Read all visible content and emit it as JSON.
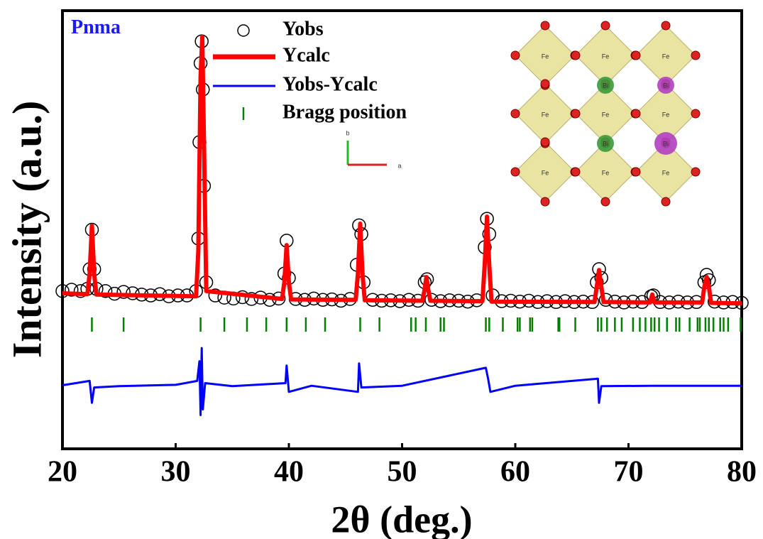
{
  "chart_data": {
    "type": "line",
    "annotation": "Pnma",
    "xlabel": "2θ (deg.)",
    "ylabel": "Intensity (a.u.)",
    "xlim": [
      20,
      80
    ],
    "xticks": [
      20,
      30,
      40,
      50,
      60,
      70,
      80
    ],
    "ylim": [
      0,
      100
    ],
    "series": [
      {
        "name": "Yobs",
        "color": "#000000",
        "marker": "circle",
        "x": [
          20,
          20.8,
          21.6,
          22.2,
          22.4,
          22.6,
          22.8,
          23.0,
          23.8,
          24.6,
          25.4,
          26.2,
          27,
          27.8,
          28.6,
          29.4,
          30.2,
          31,
          31.8,
          32.0,
          32.1,
          32.2,
          32.3,
          32.4,
          32.5,
          32.7,
          33.5,
          34.3,
          35.1,
          35.9,
          36.7,
          37.5,
          38.3,
          39.1,
          39.6,
          39.8,
          40.0,
          40.6,
          41.4,
          42.2,
          43,
          43.8,
          44.6,
          45.4,
          46.0,
          46.2,
          46.4,
          46.6,
          47.4,
          48.2,
          49,
          49.8,
          50.6,
          51.4,
          52.0,
          52.2,
          52.6,
          53.4,
          54.2,
          55,
          55.8,
          56.6,
          57.3,
          57.5,
          57.7,
          58.0,
          58.8,
          59.6,
          60.4,
          61.2,
          62,
          62.8,
          63.6,
          64.4,
          65.2,
          66,
          66.8,
          67.2,
          67.4,
          67.6,
          68.0,
          68.8,
          69.6,
          70.4,
          71.2,
          72.0,
          72.2,
          72.8,
          73.6,
          74.4,
          75.2,
          76,
          76.7,
          76.9,
          77.1,
          77.6,
          78.4,
          79.2,
          80
        ],
        "values": [
          36,
          36.3,
          36,
          36.5,
          41,
          50,
          41,
          36.5,
          36,
          35.4,
          35.8,
          35.5,
          35.2,
          35,
          35.3,
          34.8,
          35,
          35,
          36,
          48,
          70,
          88,
          93,
          82,
          60,
          38,
          35,
          34.5,
          34.3,
          34.6,
          34.2,
          34.5,
          34,
          34.3,
          40,
          47.5,
          39,
          34.2,
          34,
          34.3,
          34,
          34.1,
          33.8,
          34.2,
          42,
          51,
          49,
          38,
          34,
          33.8,
          33.9,
          33.7,
          34,
          33.8,
          38,
          38.7,
          34,
          33.7,
          33.9,
          33.8,
          33.6,
          33.9,
          46,
          52.5,
          49,
          35,
          33.7,
          33.8,
          33.6,
          33.8,
          33.5,
          33.7,
          33.5,
          33.7,
          33.5,
          33.6,
          33.5,
          38,
          41,
          39,
          34,
          33.6,
          33.4,
          33.6,
          33.5,
          34.8,
          35,
          33.5,
          33.4,
          33.6,
          33.4,
          33.5,
          38,
          39.7,
          38.5,
          33.6,
          33.4,
          33.5,
          33.3
        ]
      },
      {
        "name": "Ycalc",
        "color": "#ff0000",
        "x": [
          20,
          22.2,
          22.4,
          22.6,
          22.8,
          23.0,
          31.8,
          32.0,
          32.2,
          32.35,
          32.5,
          32.7,
          39.4,
          39.6,
          39.8,
          40.0,
          40.2,
          45.9,
          46.1,
          46.3,
          46.5,
          46.7,
          51.8,
          52.0,
          52.15,
          52.3,
          52.5,
          57.1,
          57.3,
          57.5,
          57.7,
          57.9,
          67.0,
          67.2,
          67.4,
          67.6,
          67.8,
          71.9,
          72.1,
          72.3,
          76.5,
          76.7,
          76.9,
          77.1,
          77.3,
          80
        ],
        "values": [
          35.5,
          35.3,
          40,
          50.9,
          40,
          35.2,
          34.8,
          45,
          85,
          94,
          70,
          36,
          34.2,
          38,
          46.5,
          38,
          34.1,
          34,
          40,
          51.4,
          40,
          33.9,
          33.8,
          36.5,
          39.2,
          36.5,
          33.8,
          33.7,
          42,
          53,
          42,
          33.6,
          33.5,
          37,
          40.8,
          37,
          33.5,
          33.4,
          35.2,
          33.4,
          33.4,
          37,
          39.2,
          37,
          33.3,
          33.2
        ]
      },
      {
        "name": "Yobs-Ycalc",
        "color": "#0000ff",
        "x": [
          20,
          22.4,
          22.6,
          22.8,
          25,
          30,
          31.9,
          32.1,
          32.2,
          32.3,
          32.4,
          32.6,
          35,
          39.7,
          39.8,
          40.0,
          42,
          46.1,
          46.2,
          46.4,
          50,
          57.4,
          57.6,
          57.8,
          60,
          67.3,
          67.4,
          67.6,
          72,
          77,
          80
        ],
        "values": [
          14.5,
          15.5,
          10.5,
          14,
          14.3,
          14.6,
          15.5,
          20,
          7.7,
          23,
          9,
          15,
          14.3,
          15,
          19,
          13,
          14.4,
          13,
          19.5,
          14,
          14.4,
          18.5,
          16,
          13,
          14.4,
          16,
          10.5,
          14.3,
          14.4,
          14.4,
          14.4
        ]
      },
      {
        "name": "Bragg position",
        "color": "#008000",
        "x": [
          22.6,
          25.4,
          32.2,
          34.3,
          36.3,
          38.0,
          39.8,
          41.5,
          43.2,
          46.3,
          48.0,
          50.8,
          51.2,
          52.1,
          53.4,
          53.7,
          57.4,
          57.7,
          58.9,
          60.2,
          60.4,
          61.3,
          61.5,
          63.8,
          63.9,
          65.3,
          67.3,
          67.6,
          68.1,
          68.8,
          69.4,
          70.4,
          71.0,
          71.5,
          72.0,
          72.3,
          72.7,
          73.4,
          74.2,
          74.5,
          75.4,
          76.1,
          76.3,
          76.8,
          77.1,
          77.5,
          78.1,
          78.4,
          78.8,
          79.9
        ]
      }
    ],
    "inset_labels": [
      "Fe",
      "Fe",
      "Fe",
      "Fe",
      "Fe",
      "Fe",
      "Fe",
      "Fe",
      "Fe",
      "Bi",
      "Bi",
      "Bi",
      "Bi",
      "b",
      "a"
    ]
  }
}
